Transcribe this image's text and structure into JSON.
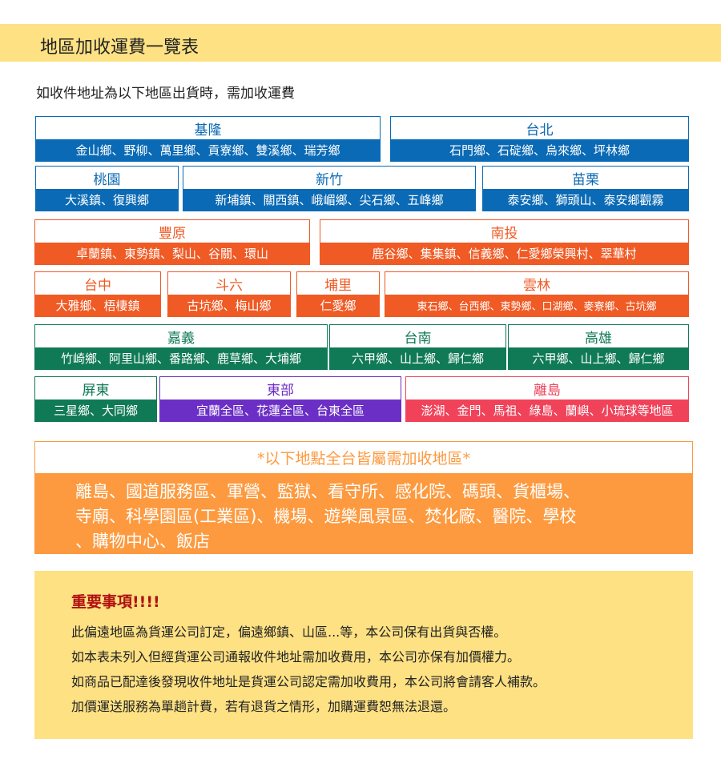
{
  "title": "地區加收運費一覽表",
  "intro": "如收件地址為以下地區出貨時，需加收運費",
  "regions": [
    {
      "name": "基隆",
      "areas": "金山鄉、野柳、萬里鄉、貢寮鄉、雙溪鄉、瑞芳鄉"
    },
    {
      "name": "台北",
      "areas": "石門鄉、石碇鄉、烏來鄉、坪林鄉"
    },
    {
      "name": "桃園",
      "areas": "大溪鎮、復興鄉"
    },
    {
      "name": "新竹",
      "areas": "新埔鎮、關西鎮、峨嵋鄉、尖石鄉、五峰鄉"
    },
    {
      "name": "苗栗",
      "areas": "泰安鄉、獅頭山、泰安鄉觀霧"
    },
    {
      "name": "豐原",
      "areas": "卓蘭鎮、東勢鎮、梨山、谷關、環山"
    },
    {
      "name": "南投",
      "areas": "鹿谷鄉、集集鎮、信義鄉、仁愛鄉榮興村、翠華村"
    },
    {
      "name": "台中",
      "areas": "大雅鄉、梧棲鎮"
    },
    {
      "name": "斗六",
      "areas": "古坑鄉、梅山鄉"
    },
    {
      "name": "埔里",
      "areas": "仁愛鄉"
    },
    {
      "name": "雲林",
      "areas": "東石鄉、台西鄉、東勢鄉、口湖鄉、麥寮鄉、古坑鄉"
    },
    {
      "name": "嘉義",
      "areas": "竹崎鄉、阿里山鄉、番路鄉、鹿草鄉、大埔鄉"
    },
    {
      "name": "台南",
      "areas": "六甲鄉、山上鄉、歸仁鄉"
    },
    {
      "name": "高雄",
      "areas": "六甲鄉、山上鄉、歸仁鄉"
    },
    {
      "name": "屏東",
      "areas": "三星鄉、大同鄉"
    },
    {
      "name": "東部",
      "areas": "宜蘭全區、花蓮全區、台東全區"
    },
    {
      "name": "離島",
      "areas": "澎湖、金門、馬祖、綠島、蘭嶼、小琉球等地區"
    }
  ],
  "colors": {
    "north": "#0a6ab5",
    "central": "#f05a24",
    "south": "#0f7a55",
    "east": "#6b2fc6",
    "islands": "#f0435a",
    "all_areas": "#fd9a3f",
    "highlight": "#fde183"
  },
  "all_areas": {
    "heading": "*以下地點全台皆屬需加收地區*",
    "lines": [
      "離島、國道服務區、軍營、監獄、看守所、感化院、碼頭、貨櫃場、",
      "寺廟、科學園區(工業區)、機場、遊樂風景區、焚化廠、醫院、學校",
      "、購物中心、飯店"
    ]
  },
  "notes": {
    "title": "重要事項!!!!",
    "lines": [
      "此偏遠地區為貨運公司訂定，偏遠鄉鎮、山區...等，本公司保有出貨與否權。",
      "如本表未列入但經貨運公司通報收件地址需加收費用，本公司亦保有加價權力。",
      "如商品已配達後發現收件地址是貨運公司認定需加收費用，本公司將會請客人補款。",
      "加價運送服務為單趟計費，若有退貨之情形，加購運費恕無法退還。"
    ]
  }
}
